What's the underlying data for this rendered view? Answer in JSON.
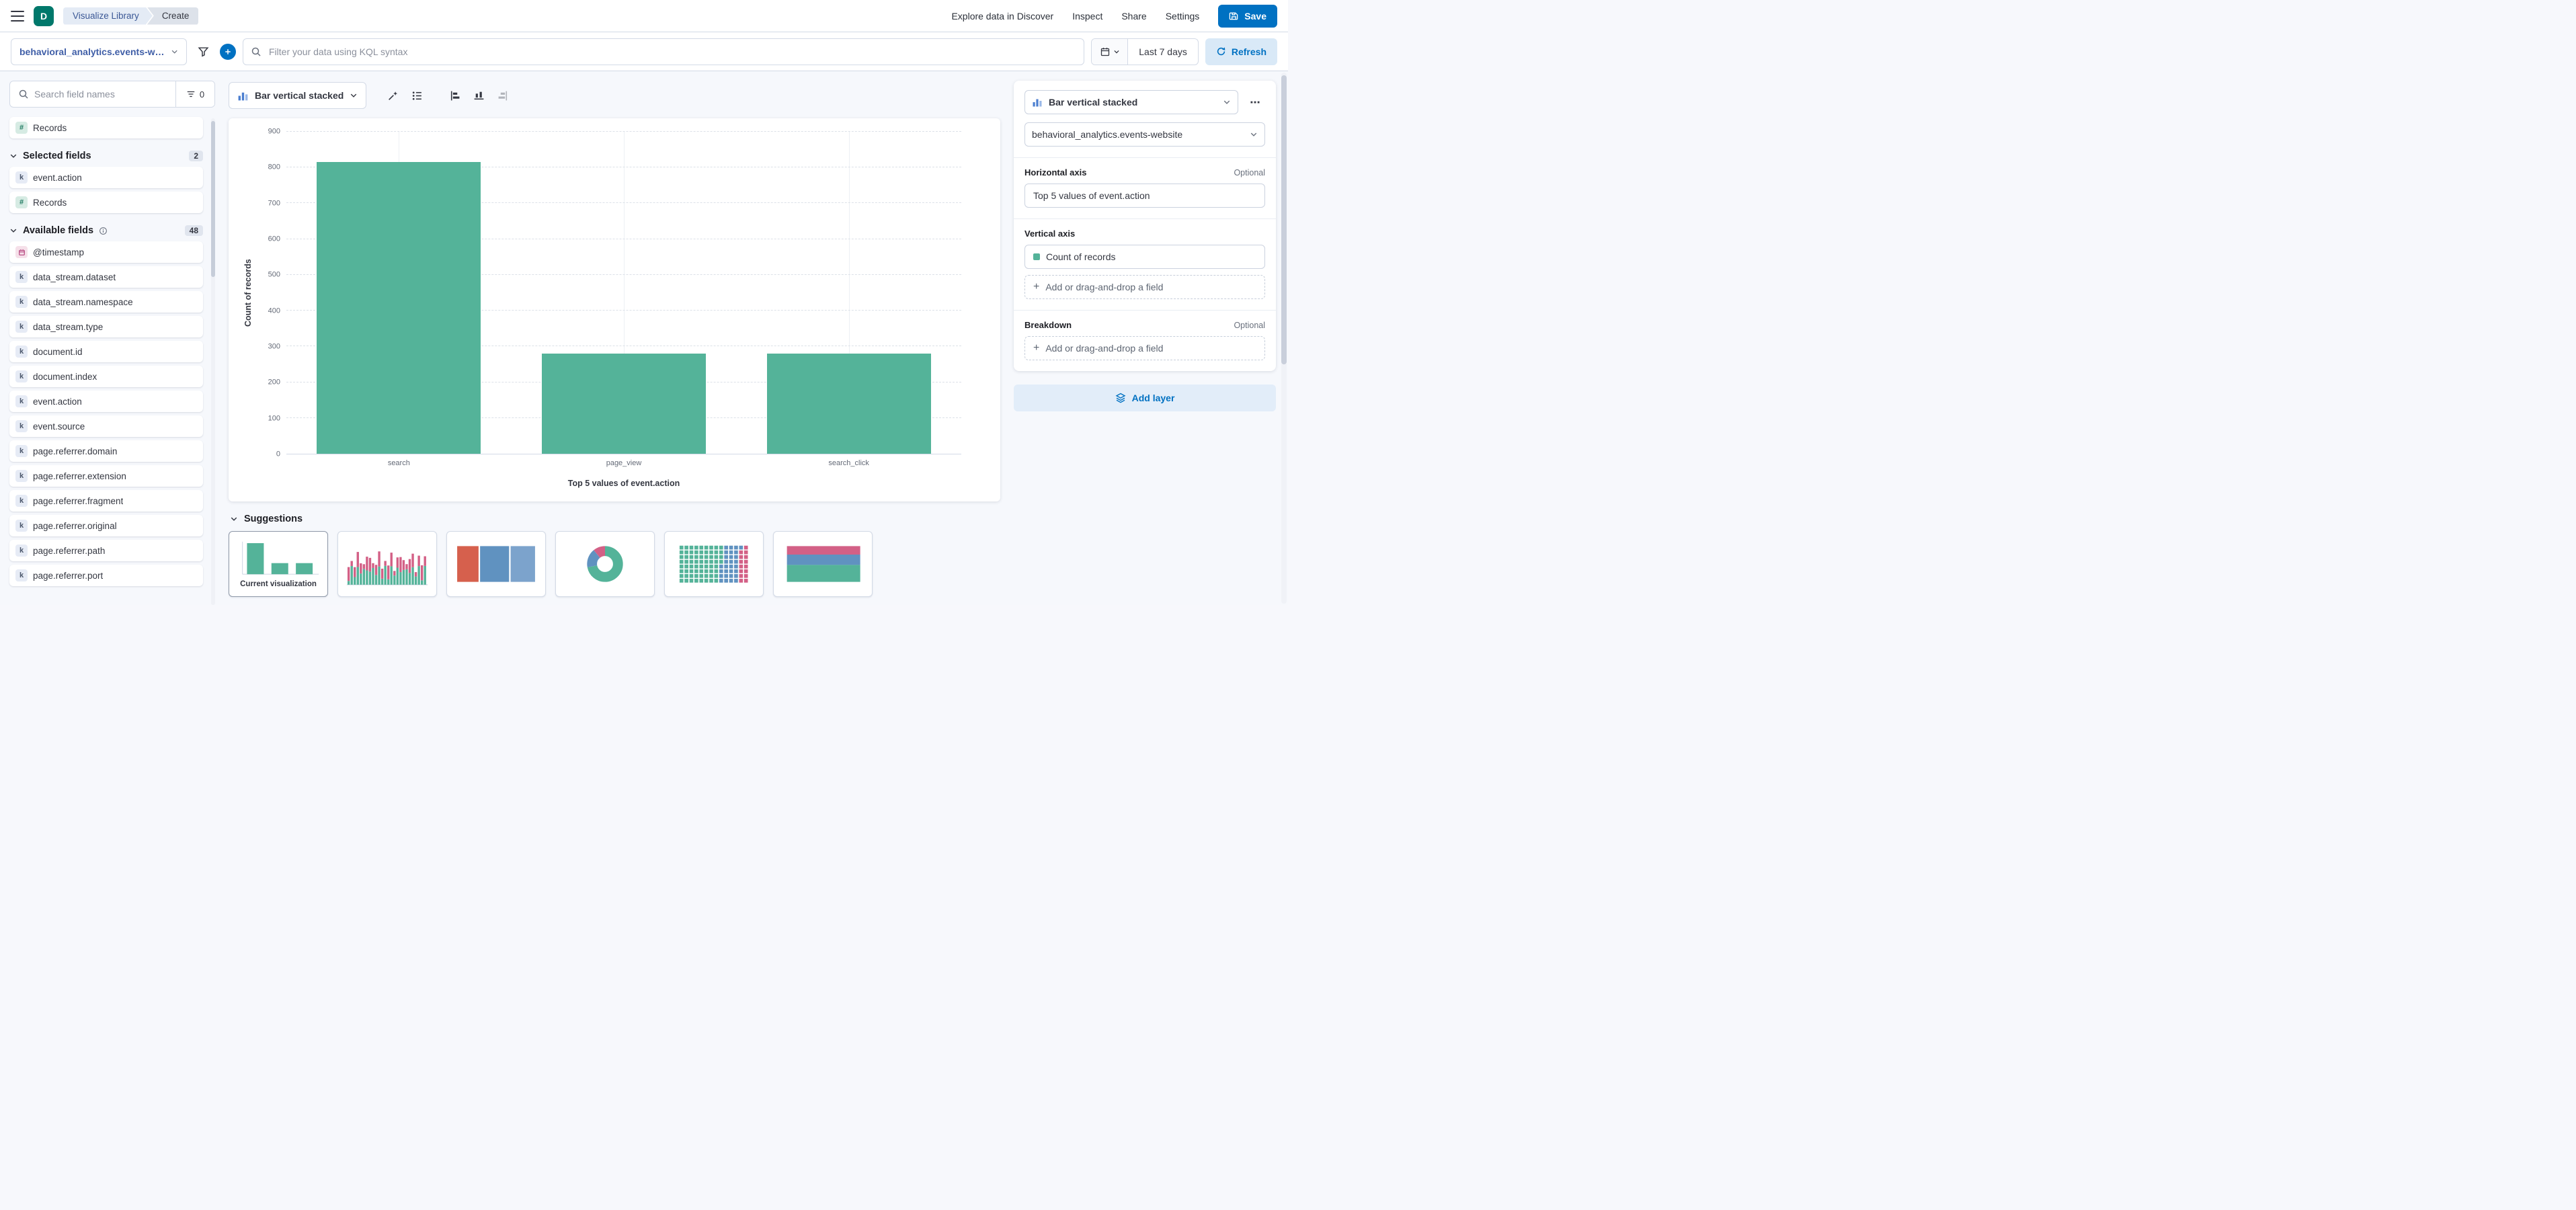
{
  "header": {
    "space_initial": "D",
    "breadcrumbs": [
      "Visualize Library",
      "Create"
    ],
    "nav_links": [
      "Explore data in Discover",
      "Inspect",
      "Share",
      "Settings"
    ],
    "save_label": "Save"
  },
  "query_bar": {
    "data_view_label": "behavioral_analytics.events-web...",
    "kql_placeholder": "Filter your data using KQL syntax",
    "time_range": "Last 7 days",
    "refresh_label": "Refresh"
  },
  "sidebar": {
    "search_placeholder": "Search field names",
    "filter_count": "0",
    "top_field": {
      "type": "number",
      "name": "Records"
    },
    "sections": {
      "selected": {
        "label": "Selected fields",
        "count": "2",
        "fields": [
          {
            "type": "keyword",
            "name": "event.action"
          },
          {
            "type": "number",
            "name": "Records"
          }
        ]
      },
      "available": {
        "label": "Available fields",
        "count": "48",
        "fields": [
          {
            "type": "date",
            "name": "@timestamp"
          },
          {
            "type": "keyword",
            "name": "data_stream.dataset"
          },
          {
            "type": "keyword",
            "name": "data_stream.namespace"
          },
          {
            "type": "keyword",
            "name": "data_stream.type"
          },
          {
            "type": "keyword",
            "name": "document.id"
          },
          {
            "type": "keyword",
            "name": "document.index"
          },
          {
            "type": "keyword",
            "name": "event.action"
          },
          {
            "type": "keyword",
            "name": "event.source"
          },
          {
            "type": "keyword",
            "name": "page.referrer.domain"
          },
          {
            "type": "keyword",
            "name": "page.referrer.extension"
          },
          {
            "type": "keyword",
            "name": "page.referrer.fragment"
          },
          {
            "type": "keyword",
            "name": "page.referrer.original"
          },
          {
            "type": "keyword",
            "name": "page.referrer.path"
          },
          {
            "type": "keyword",
            "name": "page.referrer.port"
          }
        ]
      }
    }
  },
  "workspace": {
    "chart_switcher_label": "Bar vertical stacked",
    "suggestions_label": "Suggestions",
    "current_viz_label": "Current visualization"
  },
  "chart_data": {
    "type": "bar",
    "categories": [
      "search",
      "page_view",
      "search_click"
    ],
    "values": [
      815,
      280,
      280
    ],
    "title": "",
    "xlabel": "Top 5 values of event.action",
    "ylabel": "Count of records",
    "ylim": [
      0,
      900
    ],
    "yticks": [
      0,
      100,
      200,
      300,
      400,
      500,
      600,
      700,
      800,
      900
    ],
    "bar_color": "#54B399",
    "legend": "off",
    "grid": "on"
  },
  "config_panel": {
    "chart_type": "Bar vertical stacked",
    "data_view": "behavioral_analytics.events-website",
    "horizontal_axis": {
      "label": "Horizontal axis",
      "optional_label": "Optional",
      "value": "Top 5 values of event.action"
    },
    "vertical_axis": {
      "label": "Vertical axis",
      "value": "Count of records",
      "dot_color": "#54B399",
      "add_placeholder": "Add or drag-and-drop a field"
    },
    "breakdown": {
      "label": "Breakdown",
      "optional_label": "Optional",
      "add_placeholder": "Add or drag-and-drop a field"
    },
    "add_layer_label": "Add layer"
  },
  "colors": {
    "primary": "#0071C2",
    "bar_green": "#54B399",
    "vis_pink": "#D36086",
    "vis_blue": "#6092C0",
    "vis_blue_light": "#7CA3CC",
    "vis_orange": "#D6604D"
  }
}
